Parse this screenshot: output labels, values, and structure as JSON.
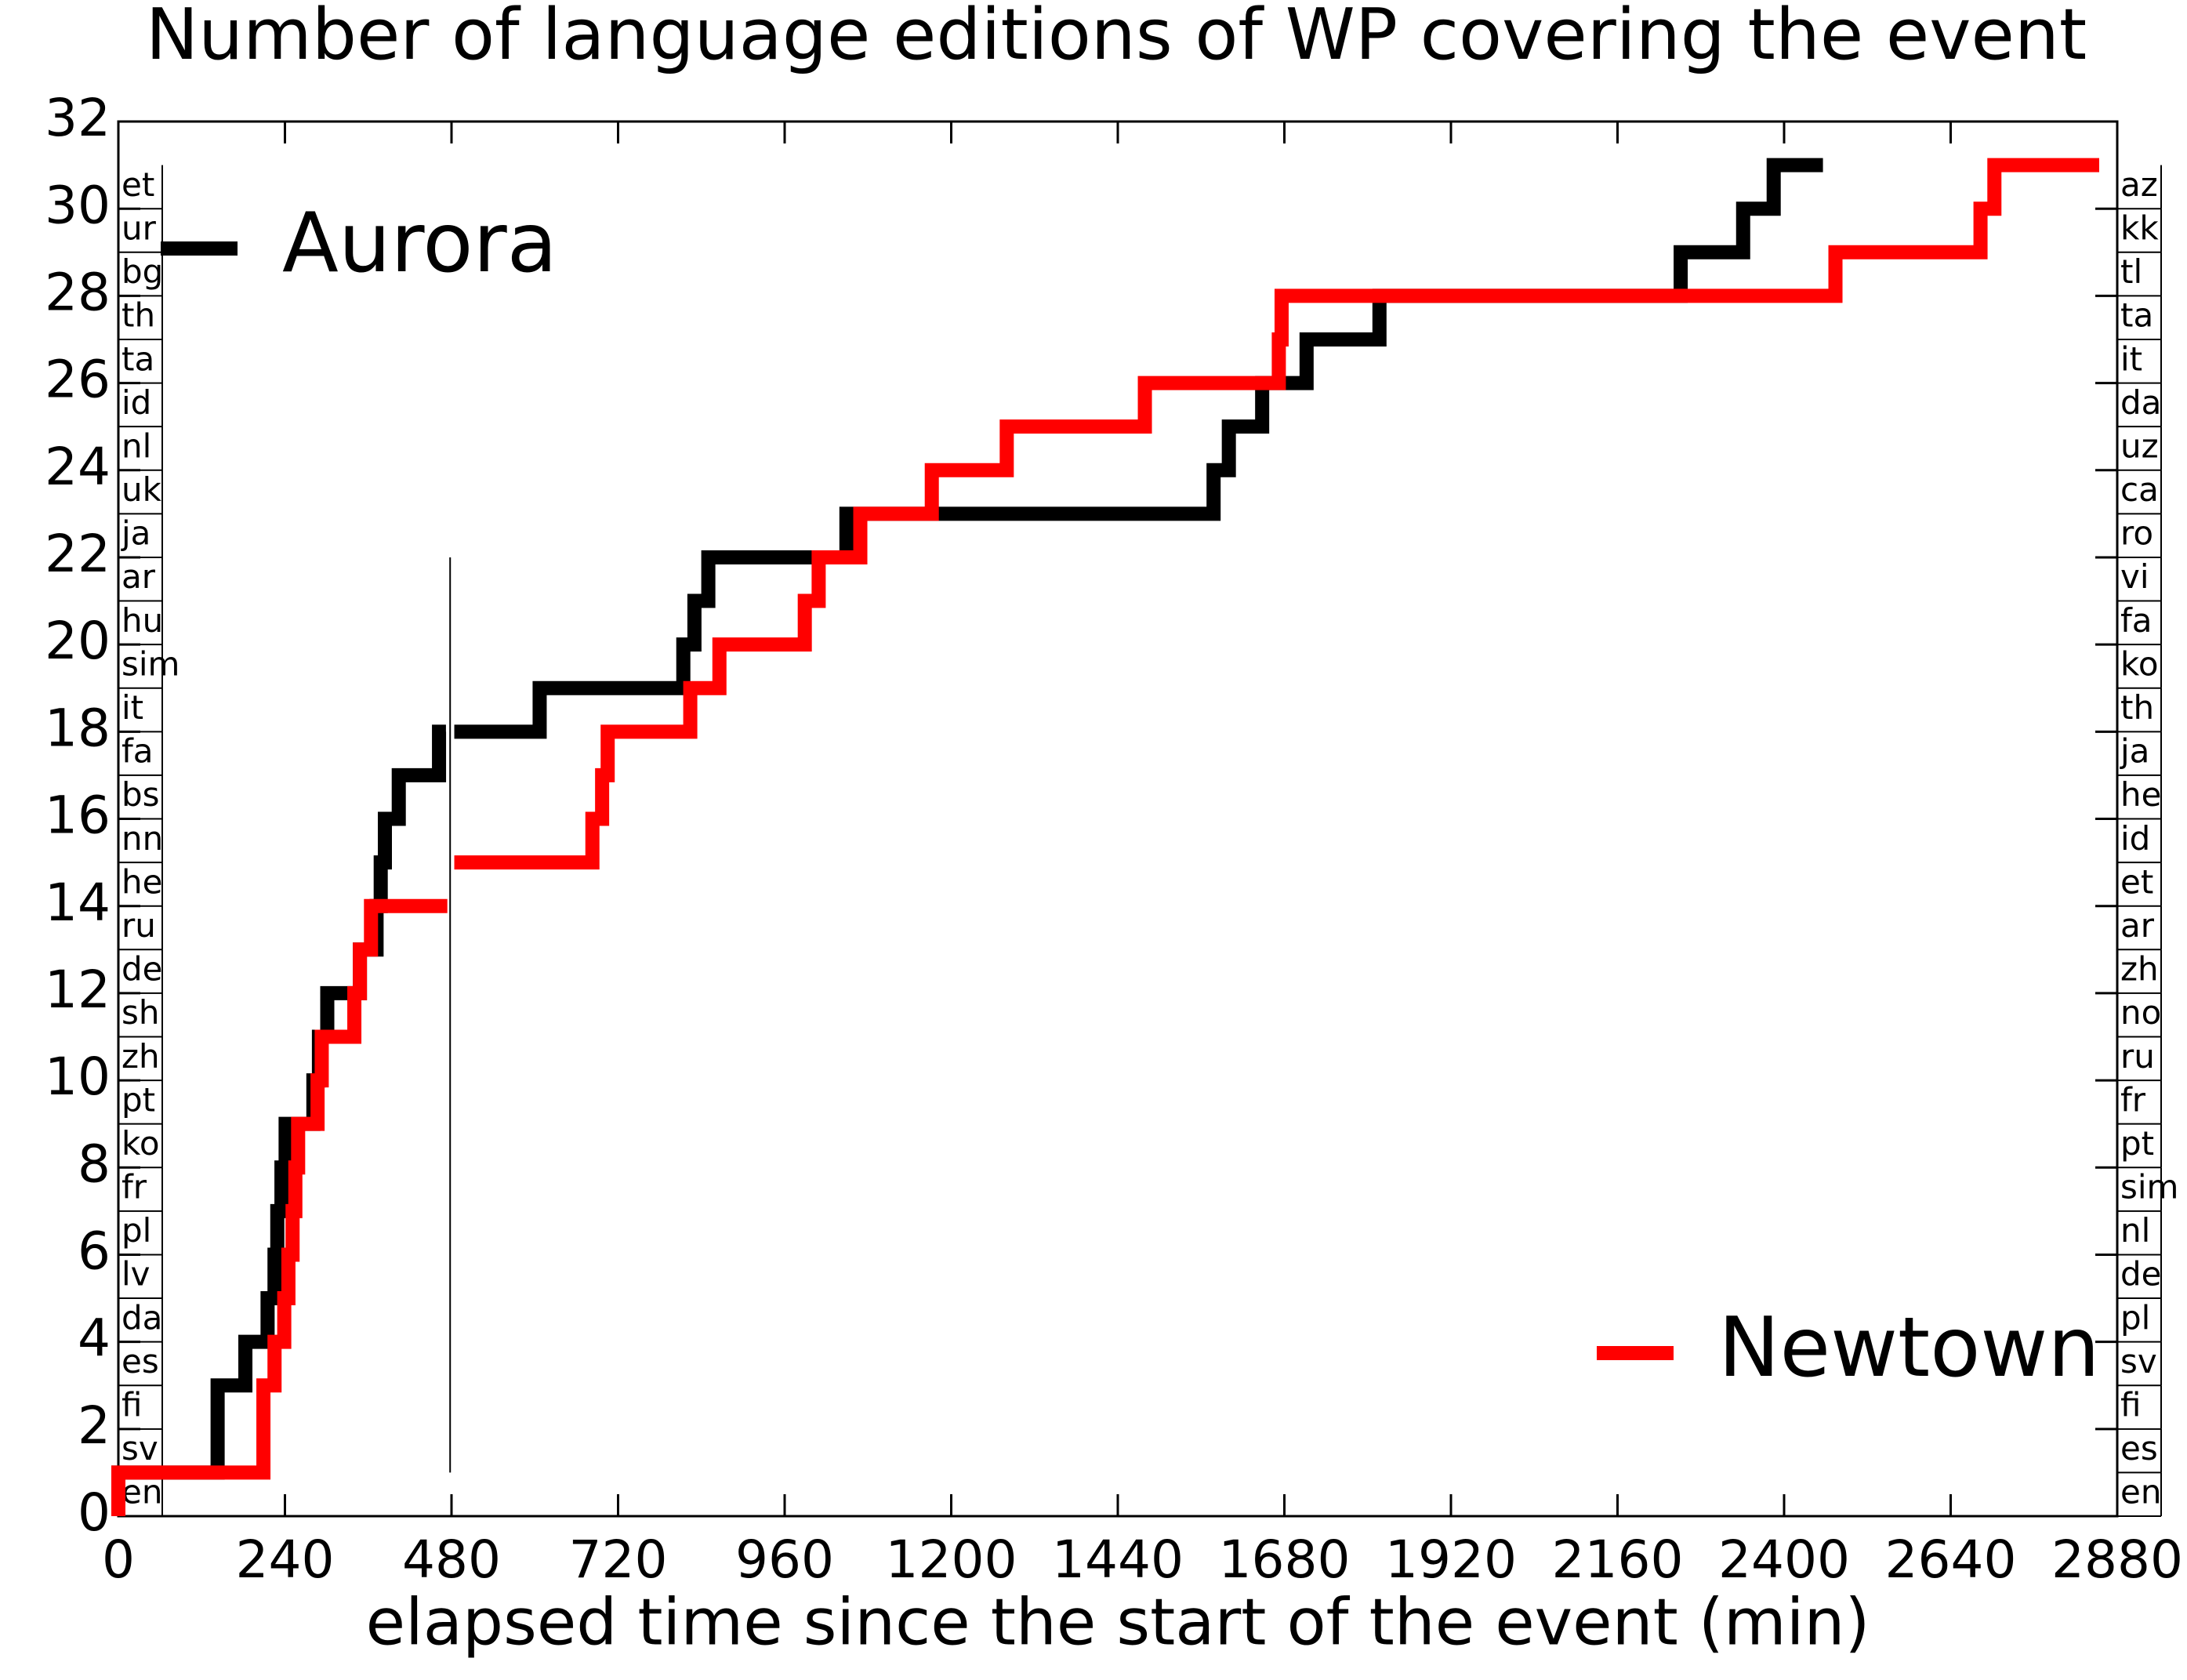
{
  "chart_data": {
    "type": "step",
    "title": "Number of language editions of WP covering the event",
    "x_label": "elapsed time since the start of the event (min)",
    "xlim": [
      0,
      2880
    ],
    "xticks": [
      0,
      240,
      480,
      720,
      960,
      1200,
      1440,
      1680,
      1920,
      2160,
      2400,
      2640,
      2880
    ],
    "ylim": [
      0,
      32
    ],
    "yticks": [
      0,
      2,
      4,
      6,
      8,
      10,
      12,
      14,
      16,
      18,
      20,
      22,
      24,
      26,
      28,
      30,
      32
    ],
    "series": [
      {
        "name": "Aurora",
        "color": "#000000",
        "legend_loc": "upper left",
        "x": [
          0,
          0,
          143,
          183,
          215,
          225,
          229,
          235,
          241,
          281,
          289,
          301,
          348,
          372,
          378,
          384,
          404,
          462,
          472,
          null,
          484,
          607,
          814,
          830,
          850,
          1049,
          1578,
          1600,
          1648,
          1712,
          1817,
          2251,
          2341,
          2385,
          2456
        ],
        "values": [
          0,
          1,
          3,
          4,
          5,
          6,
          7,
          8,
          9,
          10,
          11,
          12,
          13,
          14,
          15,
          16,
          17,
          18,
          18,
          null,
          18,
          19,
          20,
          21,
          22,
          23,
          24,
          25,
          26,
          27,
          28,
          29,
          30,
          31,
          31
        ],
        "languages": [
          "en",
          "sv",
          "fi",
          "es",
          "da",
          "lv",
          "pl",
          "fr",
          "ko",
          "pt",
          "zh",
          "sh",
          "de",
          "ru",
          "he",
          "nn",
          "bs",
          "fa",
          "it",
          "sim",
          "hu",
          "ar",
          "ja",
          "uk",
          "nl",
          "id",
          "ta",
          "th",
          "bg",
          "ur",
          "et"
        ]
      },
      {
        "name": "Newtown",
        "color": "#ff0000",
        "legend_loc": "lower right",
        "x": [
          0,
          0,
          209,
          225,
          239,
          245,
          251,
          255,
          259,
          287,
          293,
          340,
          348,
          364,
          474,
          null,
          484,
          683,
          697,
          705,
          824,
          866,
          989,
          1009,
          1069,
          1172,
          1280,
          1479,
          1672,
          1676,
          2474,
          2683,
          2703,
          2854
        ],
        "values": [
          0,
          1,
          3,
          4,
          5,
          6,
          7,
          8,
          9,
          10,
          11,
          12,
          13,
          14,
          14,
          null,
          15,
          16,
          17,
          18,
          19,
          20,
          21,
          22,
          23,
          24,
          25,
          26,
          27,
          28,
          29,
          30,
          31,
          31
        ],
        "languages": [
          "en",
          "es",
          "fi",
          "sv",
          "pl",
          "de",
          "nl",
          "sim",
          "pt",
          "fr",
          "ru",
          "no",
          "zh",
          "ar",
          "et",
          "id",
          "he",
          "ja",
          "th",
          "ko",
          "fa",
          "vi",
          "ro",
          "ca",
          "uz",
          "da",
          "it",
          "ta",
          "tl",
          "kk",
          "az"
        ]
      }
    ],
    "reference_line": {
      "x": 478,
      "y": [
        1,
        22
      ]
    }
  }
}
